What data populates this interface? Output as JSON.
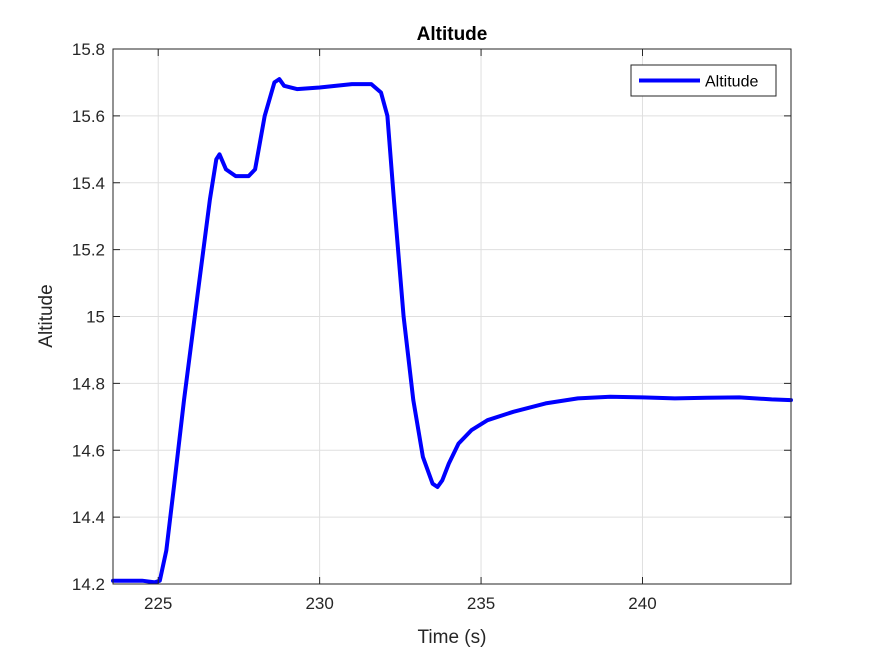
{
  "chart_data": {
    "type": "line",
    "title": "Altitude",
    "xlabel": "Time (s)",
    "ylabel": "Altitude",
    "xlim": [
      223.6,
      244.6
    ],
    "ylim": [
      14.2,
      15.8
    ],
    "xticks": [
      225,
      230,
      235,
      240
    ],
    "xtick_labels": [
      "225",
      "230",
      "235",
      "240"
    ],
    "yticks": [
      14.2,
      14.4,
      14.6,
      14.8,
      15,
      15.2,
      15.4,
      15.6,
      15.8
    ],
    "ytick_labels": [
      "14.2",
      "14.4",
      "14.6",
      "14.8",
      "15",
      "15.2",
      "15.4",
      "15.6",
      "15.8"
    ],
    "grid": true,
    "legend_position": "top-right",
    "series": [
      {
        "name": "Altitude",
        "color": "#0000ff",
        "x": [
          223.6,
          224.0,
          224.5,
          224.9,
          225.05,
          225.25,
          225.5,
          225.8,
          226.2,
          226.6,
          226.8,
          226.9,
          227.1,
          227.4,
          227.8,
          228.0,
          228.3,
          228.6,
          228.75,
          228.9,
          229.3,
          230.0,
          231.0,
          231.6,
          231.9,
          232.1,
          232.3,
          232.6,
          232.9,
          233.2,
          233.5,
          233.65,
          233.8,
          234.0,
          234.3,
          234.7,
          235.2,
          236.0,
          237.0,
          238.0,
          239.0,
          240.0,
          241.0,
          242.0,
          243.0,
          244.0,
          244.6
        ],
        "y": [
          14.21,
          14.21,
          14.21,
          14.205,
          14.21,
          14.3,
          14.5,
          14.75,
          15.05,
          15.35,
          15.47,
          15.485,
          15.44,
          15.42,
          15.42,
          15.44,
          15.6,
          15.7,
          15.71,
          15.69,
          15.68,
          15.685,
          15.695,
          15.695,
          15.67,
          15.6,
          15.35,
          15.0,
          14.75,
          14.58,
          14.5,
          14.49,
          14.51,
          14.56,
          14.62,
          14.66,
          14.69,
          14.715,
          14.74,
          14.755,
          14.76,
          14.758,
          14.755,
          14.757,
          14.758,
          14.752,
          14.75
        ]
      }
    ]
  }
}
